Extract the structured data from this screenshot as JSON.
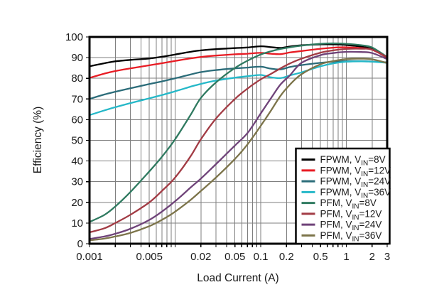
{
  "figure": {
    "background": "#ffffff",
    "plot_border_color": "#000000",
    "grid_color": "#7f7f7f",
    "text_color": "#1a1a1a"
  },
  "chart_data": {
    "type": "line",
    "title": "",
    "xlabel": "Load Current (A)",
    "ylabel": "Efficiency (%)",
    "x_scale": "log",
    "xlim": [
      0.001,
      3
    ],
    "ylim": [
      0,
      100
    ],
    "grid": "on",
    "legend_position": "bottom-right",
    "y_ticks": [
      0,
      10,
      20,
      30,
      40,
      50,
      60,
      70,
      80,
      90,
      100
    ],
    "x_ticks": [
      {
        "value": 0.001,
        "label": "0.001"
      },
      {
        "value": 0.005,
        "label": "0.005"
      },
      {
        "value": 0.02,
        "label": "0.02"
      },
      {
        "value": 0.05,
        "label": "0.05"
      },
      {
        "value": 0.1,
        "label": "0.1"
      },
      {
        "value": 0.2,
        "label": "0.2"
      },
      {
        "value": 0.5,
        "label": "0.5"
      },
      {
        "value": 1,
        "label": "1"
      },
      {
        "value": 2,
        "label": "2"
      },
      {
        "value": 3,
        "label": "3"
      }
    ],
    "x": [
      0.001,
      0.0015,
      0.002,
      0.003,
      0.005,
      0.007,
      0.01,
      0.015,
      0.02,
      0.03,
      0.05,
      0.07,
      0.1,
      0.13,
      0.17,
      0.22,
      0.3,
      0.5,
      0.7,
      1,
      1.5,
      2,
      3
    ],
    "series": [
      {
        "name": "FPWM, VIN=8V",
        "label_pre": "FPWM, V",
        "label_sub": "IN",
        "label_post": "=8V",
        "color": "#000000",
        "values": [
          85.8,
          87.3,
          88.2,
          88.9,
          89.6,
          90.4,
          91.5,
          92.8,
          93.5,
          94.1,
          94.6,
          94.9,
          95.5,
          95.1,
          94.7,
          95.4,
          96.0,
          96.4,
          96.4,
          96.1,
          95.3,
          94.2,
          89.9
        ]
      },
      {
        "name": "FPWM, VIN=12V",
        "label_pre": "FPWM, V",
        "label_sub": "IN",
        "label_post": "=12V",
        "color": "#e81c24",
        "values": [
          80.2,
          82.3,
          83.5,
          84.8,
          86.3,
          87.3,
          88.4,
          89.6,
          90.3,
          91.0,
          91.6,
          91.9,
          92.3,
          91.9,
          91.7,
          92.5,
          93.2,
          94.3,
          94.8,
          95.0,
          94.6,
          93.8,
          90.1
        ]
      },
      {
        "name": "FPWM, VIN=24V",
        "label_pre": "FPWM, V",
        "label_sub": "IN",
        "label_post": "=24V",
        "color": "#2b6c79",
        "values": [
          70.0,
          72.2,
          73.5,
          75.2,
          77.2,
          78.5,
          80.0,
          81.8,
          83.0,
          84.0,
          84.8,
          85.2,
          85.6,
          84.7,
          84.3,
          85.5,
          86.4,
          87.5,
          88.0,
          88.3,
          88.3,
          88.1,
          87.7
        ]
      },
      {
        "name": "FPWM, VIN=36V",
        "label_pre": "FPWM, V",
        "label_sub": "IN",
        "label_post": "=36V",
        "color": "#25b8c8",
        "values": [
          62.2,
          64.5,
          66.0,
          68.0,
          70.3,
          71.9,
          73.7,
          75.9,
          77.3,
          78.9,
          80.3,
          81.0,
          81.6,
          80.5,
          80.1,
          81.4,
          82.9,
          85.8,
          87.2,
          88.0,
          88.2,
          88.0,
          87.5
        ]
      },
      {
        "name": "PFM, VIN=8V",
        "label_pre": "PFM, V",
        "label_sub": "IN",
        "label_post": "=8V",
        "color": "#2f7a60",
        "values": [
          10.5,
          14.0,
          18.0,
          25.0,
          35.0,
          42.0,
          50.5,
          62.0,
          70.5,
          78.0,
          85.0,
          88.5,
          91.5,
          93.0,
          94.2,
          95.0,
          95.8,
          96.7,
          96.9,
          96.7,
          96.0,
          94.9,
          90.3
        ]
      },
      {
        "name": "PFM, VIN=12V",
        "label_pre": "PFM, V",
        "label_sub": "IN",
        "label_post": "=12V",
        "color": "#a23b44",
        "values": [
          5.5,
          7.5,
          10.0,
          14.0,
          20.0,
          25.5,
          32.0,
          42.0,
          50.5,
          60.5,
          70.0,
          75.0,
          79.5,
          82.0,
          84.8,
          87.2,
          89.5,
          92.4,
          93.5,
          94.2,
          94.3,
          93.9,
          90.2
        ]
      },
      {
        "name": "PFM, VIN=24V",
        "label_pre": "PFM, V",
        "label_sub": "IN",
        "label_post": "=24V",
        "color": "#6f4379",
        "values": [
          2.3,
          3.5,
          4.8,
          7.2,
          11.5,
          15.5,
          20.5,
          27.0,
          31.5,
          38.5,
          47.5,
          53.5,
          63.0,
          70.0,
          77.0,
          81.5,
          87.5,
          91.2,
          92.2,
          92.8,
          92.7,
          92.2,
          89.3
        ]
      },
      {
        "name": "PFM, VIN=36V",
        "label_pre": "PFM, V",
        "label_sub": "IN",
        "label_post": "=36V",
        "color": "#7c744a",
        "values": [
          1.6,
          2.5,
          3.5,
          5.2,
          8.5,
          11.5,
          15.5,
          21.0,
          25.5,
          32.0,
          41.0,
          48.0,
          57.0,
          64.0,
          71.5,
          77.0,
          82.0,
          86.8,
          88.3,
          89.3,
          89.5,
          89.2,
          87.4
        ]
      }
    ]
  }
}
